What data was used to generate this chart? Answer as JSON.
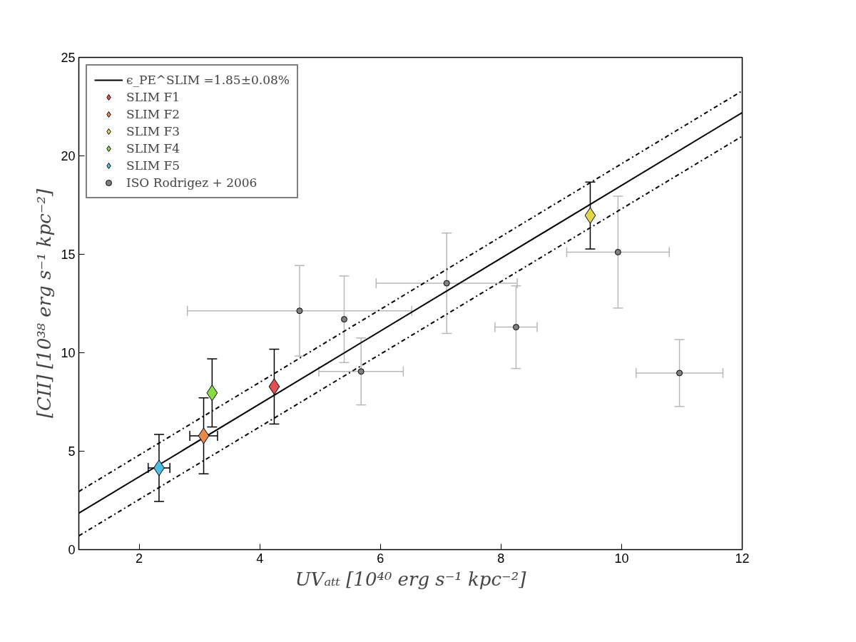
{
  "chart_data": {
    "type": "scatter",
    "xlabel": "UVₐₜₜ [10⁴⁰ erg s⁻¹ kpc⁻²]",
    "ylabel": "[CII] [10³⁸ erg s⁻¹ kpc⁻²]",
    "xlim": [
      1,
      12
    ],
    "ylim": [
      0,
      25
    ],
    "xticks": [
      2,
      4,
      6,
      8,
      10,
      12
    ],
    "yticks": [
      0,
      5,
      10,
      15,
      20,
      25
    ],
    "grid": false,
    "legend": "top left",
    "series": [
      {
        "type": "line",
        "name": "ϵ_PE^SLIM =1.85±0.08%",
        "color": "#000000",
        "line_style": "solid",
        "x": [
          1,
          12
        ],
        "values": [
          1.85,
          22.2
        ]
      },
      {
        "type": "line",
        "color": "#000000",
        "line_style": "dashdot",
        "x": [
          1,
          12
        ],
        "values": [
          2.95,
          23.3
        ]
      },
      {
        "type": "line",
        "color": "#000000",
        "line_style": "dashdot",
        "x": [
          1,
          12
        ],
        "values": [
          0.7,
          21.0
        ]
      },
      {
        "name": "SLIM F1",
        "color": "#e0504f",
        "marker": "diamond",
        "x": [
          4.24
        ],
        "values": [
          8.28
        ],
        "errors": [
          1.9
        ]
      },
      {
        "name": "SLIM F2",
        "color": "#e8894a",
        "marker": "diamond",
        "x": [
          3.07
        ],
        "values": [
          5.78
        ],
        "errors": [
          1.93
        ],
        "xerrors": [
          0.23
        ]
      },
      {
        "name": "SLIM F3",
        "color": "#e0d84a",
        "marker": "diamond",
        "x": [
          9.48
        ],
        "values": [
          16.97
        ],
        "errors": [
          1.7
        ]
      },
      {
        "name": "SLIM F4",
        "color": "#88dd44",
        "marker": "diamond",
        "x": [
          3.21
        ],
        "values": [
          7.96
        ],
        "errors": [
          1.73
        ]
      },
      {
        "name": "SLIM F5",
        "color": "#4ac0e0",
        "marker": "diamond",
        "x": [
          2.33
        ],
        "values": [
          4.15
        ],
        "errors": [
          1.7
        ],
        "xerrors": [
          0.18
        ]
      },
      {
        "name": "ISO Rodrigez + 2006",
        "color": "#808080",
        "marker": "circle",
        "x": [
          4.66,
          5.4,
          5.68,
          7.1,
          8.25,
          9.94,
          10.96
        ],
        "values": [
          12.13,
          11.7,
          9.05,
          13.53,
          11.3,
          15.11,
          8.97
        ],
        "errors": [
          2.3,
          2.2,
          1.7,
          2.55,
          2.1,
          2.84,
          1.7
        ],
        "xerrors": [
          1.86,
          null,
          0.7,
          1.17,
          0.35,
          0.85,
          0.72
        ]
      }
    ]
  }
}
